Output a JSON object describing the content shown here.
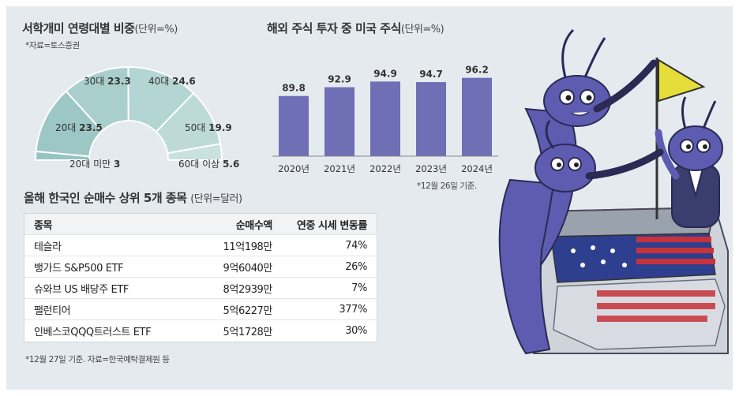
{
  "age_chart": {
    "title": "서학개미 연령대별 비중",
    "unit": "(단위=%)",
    "source": "*자료=토스증권"
  },
  "us_chart": {
    "title": "해외 주식 투자 중 미국 주식",
    "unit": "(단위=%)",
    "note": "*12월 26일 기준."
  },
  "table": {
    "title": "올해 한국인 순매수 상위 5개 종목",
    "unit": "(단위=달러)",
    "headers": [
      "종목",
      "순매수액",
      "연중 시세 변동률"
    ],
    "rows": [
      [
        "테슬라",
        "11억198만",
        "74%"
      ],
      [
        "뱅가드 S&P500 ETF",
        "9억6040만",
        "26%"
      ],
      [
        "슈와브 US 배당주 ETF",
        "8억2939만",
        "7%"
      ],
      [
        "팰런티어",
        "5억6227만",
        "377%"
      ],
      [
        "인베스코QQQ트러스트 ETF",
        "5억1728만",
        "30%"
      ]
    ],
    "note": "*12월 27일 기준. 자료=한국예탁결제원 등"
  },
  "chart_data": [
    {
      "type": "pie",
      "title": "서학개미 연령대별 비중",
      "subtype": "half-donut",
      "categories": [
        "20대 미만",
        "20대",
        "30대",
        "40대",
        "50대",
        "60대 이상"
      ],
      "labels": [
        "20대 미만 3",
        "20대 23.5",
        "30대 23.3",
        "40대 24.6",
        "50대 19.9",
        "60대 이상 5.6"
      ],
      "values": [
        3,
        23.5,
        23.3,
        24.6,
        19.9,
        5.6
      ],
      "colors": [
        "#97c3c1",
        "#9dc7c5",
        "#a9cfcd",
        "#b3d5d3",
        "#bddad8",
        "#c9e1df"
      ]
    },
    {
      "type": "bar",
      "title": "해외 주식 투자 중 미국 주식",
      "categories": [
        "2020년",
        "2021년",
        "2022년",
        "2023년",
        "2024년"
      ],
      "values": [
        89.8,
        92.9,
        94.9,
        94.7,
        96.2
      ],
      "labels": [
        "89.8",
        "92.9",
        "94.9",
        "94.7",
        "96.2"
      ],
      "bar_color": "#6f6fb6",
      "ylim": [
        70,
        100
      ]
    }
  ]
}
